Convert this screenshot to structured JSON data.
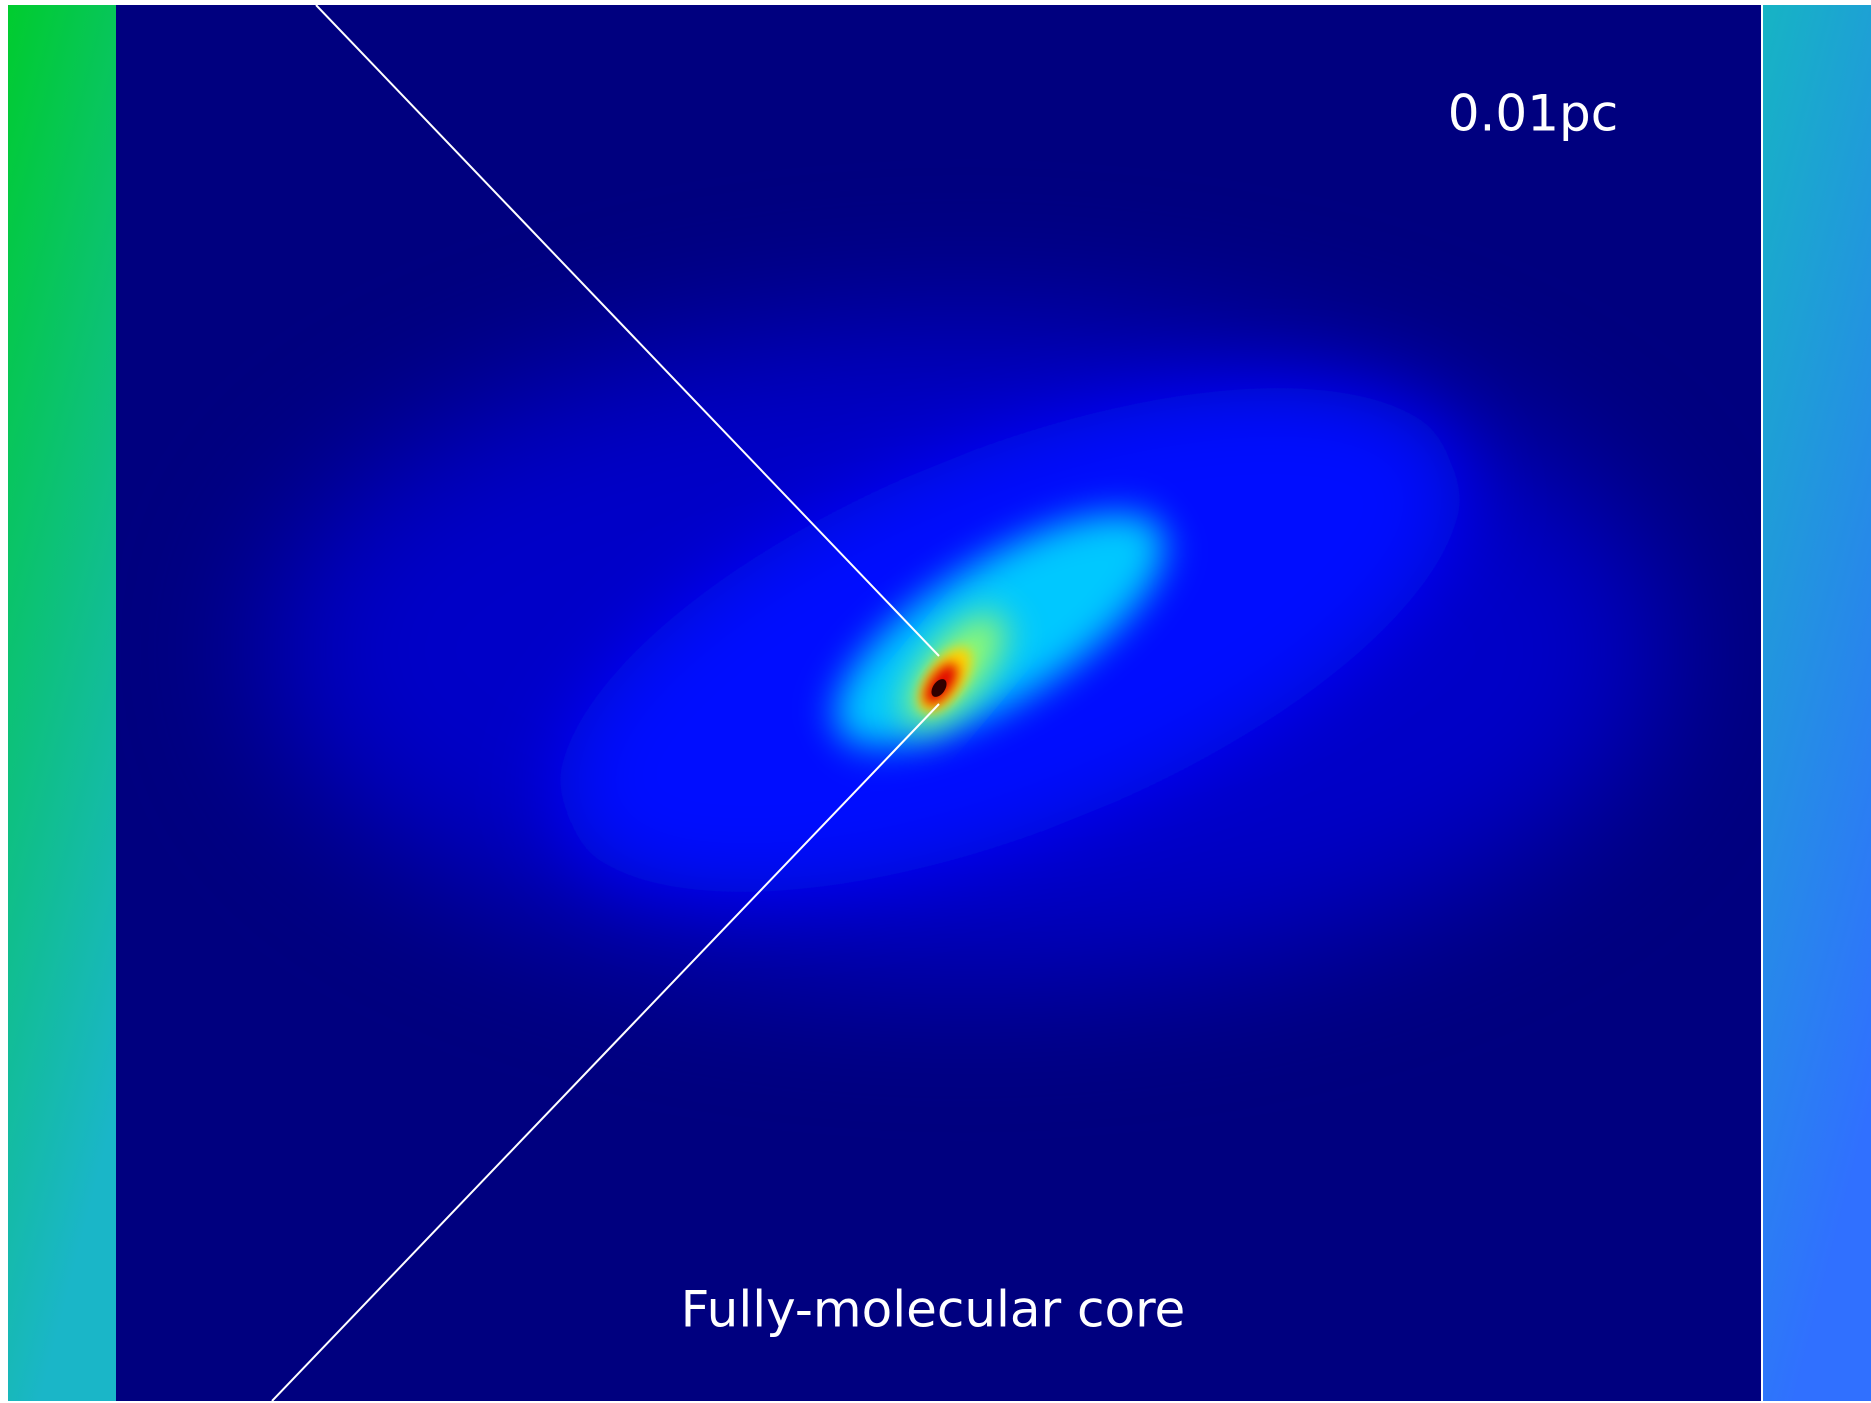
{
  "scale_label": "0.01pc",
  "caption": "Fully-molecular core"
}
